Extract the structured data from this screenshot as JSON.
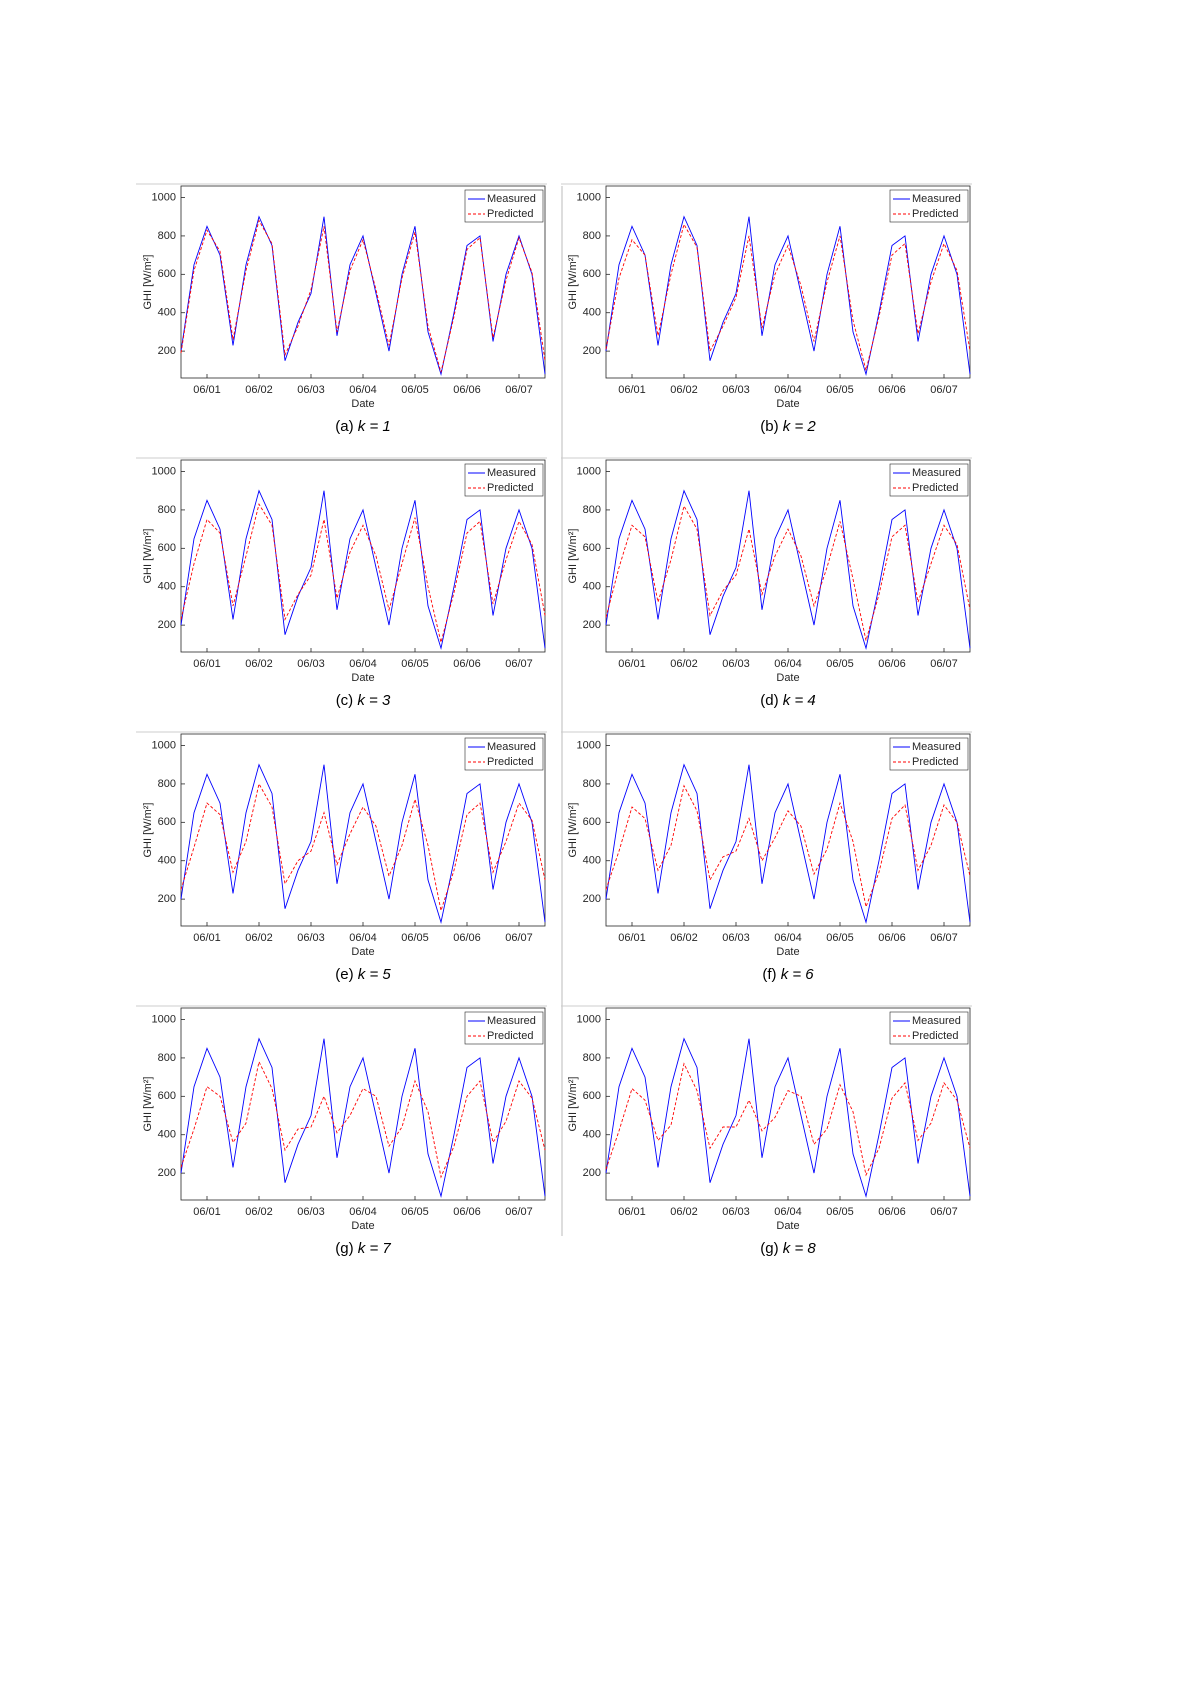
{
  "chart_data": [
    {
      "type": "line",
      "caption": "(a)",
      "k": "k = 1",
      "xlabel": "Date",
      "ylabel": "GHI [W/m²]",
      "ylim": [
        60,
        1060
      ],
      "yticks": [
        200,
        400,
        600,
        800,
        1000
      ],
      "categories": [
        null,
        null,
        "06/01",
        null,
        null,
        null,
        "06/02",
        null,
        null,
        null,
        "06/03",
        null,
        null,
        null,
        "06/04",
        null,
        null,
        null,
        "06/05",
        null,
        null,
        null,
        "06/06",
        null,
        null,
        null,
        "06/07",
        null,
        null
      ],
      "series": [
        {
          "name": "Measured",
          "color": "#0000ff",
          "values": [
            200,
            650,
            850,
            700,
            230,
            650,
            900,
            750,
            150,
            350,
            500,
            900,
            280,
            650,
            800,
            500,
            200,
            600,
            850,
            300,
            80,
            400,
            750,
            800,
            250,
            600,
            800,
            600,
            80
          ]
        },
        {
          "name": "Predicted",
          "color": "#ff0000",
          "values": [
            190,
            620,
            830,
            720,
            260,
            620,
            880,
            760,
            180,
            330,
            520,
            850,
            300,
            620,
            780,
            520,
            230,
            580,
            820,
            330,
            90,
            380,
            730,
            790,
            270,
            570,
            790,
            610,
            150
          ]
        }
      ]
    },
    {
      "type": "line",
      "caption": "(b)",
      "k": "k = 2",
      "xlabel": "Date",
      "ylabel": "GHI [W/m²]",
      "ylim": [
        60,
        1060
      ],
      "yticks": [
        200,
        400,
        600,
        800,
        1000
      ],
      "categories": [
        null,
        null,
        "06/01",
        null,
        null,
        null,
        "06/02",
        null,
        null,
        null,
        "06/03",
        null,
        null,
        null,
        "06/04",
        null,
        null,
        null,
        "06/05",
        null,
        null,
        null,
        "06/06",
        null,
        null,
        null,
        "06/07",
        null,
        null
      ],
      "series": [
        {
          "name": "Measured",
          "color": "#0000ff",
          "values": [
            200,
            650,
            850,
            700,
            230,
            650,
            900,
            750,
            150,
            350,
            500,
            900,
            280,
            650,
            800,
            500,
            200,
            600,
            850,
            300,
            80,
            400,
            750,
            800,
            250,
            600,
            800,
            600,
            80
          ]
        },
        {
          "name": "Predicted",
          "color": "#ff0000",
          "values": [
            210,
            580,
            780,
            700,
            280,
            600,
            860,
            740,
            200,
            330,
            480,
            800,
            320,
            600,
            750,
            540,
            250,
            560,
            800,
            360,
            100,
            380,
            700,
            760,
            290,
            560,
            760,
            620,
            200
          ]
        }
      ]
    },
    {
      "type": "line",
      "caption": "(c)",
      "k": "k = 3",
      "xlabel": "Date",
      "ylabel": "GHI [W/m²]",
      "ylim": [
        60,
        1060
      ],
      "yticks": [
        200,
        400,
        600,
        800,
        1000
      ],
      "categories": [
        null,
        null,
        "06/01",
        null,
        null,
        null,
        "06/02",
        null,
        null,
        null,
        "06/03",
        null,
        null,
        null,
        "06/04",
        null,
        null,
        null,
        "06/05",
        null,
        null,
        null,
        "06/06",
        null,
        null,
        null,
        "06/07",
        null,
        null
      ],
      "series": [
        {
          "name": "Measured",
          "color": "#0000ff",
          "values": [
            200,
            650,
            850,
            700,
            230,
            650,
            900,
            750,
            150,
            350,
            500,
            900,
            280,
            650,
            800,
            500,
            200,
            600,
            850,
            300,
            80,
            400,
            750,
            800,
            250,
            600,
            800,
            600,
            80
          ]
        },
        {
          "name": "Predicted",
          "color": "#ff0000",
          "values": [
            230,
            520,
            750,
            680,
            300,
            560,
            830,
            720,
            230,
            360,
            460,
            750,
            340,
            580,
            720,
            560,
            280,
            520,
            760,
            400,
            110,
            370,
            680,
            740,
            310,
            540,
            740,
            620,
            250
          ]
        }
      ]
    },
    {
      "type": "line",
      "caption": "(d)",
      "k": "k = 4",
      "xlabel": "Date",
      "ylabel": "GHI [W/m²]",
      "ylim": [
        60,
        1060
      ],
      "yticks": [
        200,
        400,
        600,
        800,
        1000
      ],
      "categories": [
        null,
        null,
        "06/01",
        null,
        null,
        null,
        "06/02",
        null,
        null,
        null,
        "06/03",
        null,
        null,
        null,
        "06/04",
        null,
        null,
        null,
        "06/05",
        null,
        null,
        null,
        "06/06",
        null,
        null,
        null,
        "06/07",
        null,
        null
      ],
      "series": [
        {
          "name": "Measured",
          "color": "#0000ff",
          "values": [
            200,
            650,
            850,
            700,
            230,
            650,
            900,
            750,
            150,
            350,
            500,
            900,
            280,
            650,
            800,
            500,
            200,
            600,
            850,
            300,
            80,
            400,
            750,
            800,
            250,
            600,
            800,
            600,
            80
          ]
        },
        {
          "name": "Predicted",
          "color": "#ff0000",
          "values": [
            240,
            500,
            720,
            660,
            320,
            540,
            820,
            700,
            250,
            380,
            460,
            700,
            360,
            560,
            700,
            560,
            300,
            500,
            740,
            440,
            120,
            360,
            660,
            720,
            320,
            520,
            720,
            620,
            280
          ]
        }
      ]
    },
    {
      "type": "line",
      "caption": "(e)",
      "k": "k = 5",
      "xlabel": "Date",
      "ylabel": "GHI [W/m²]",
      "ylim": [
        60,
        1060
      ],
      "yticks": [
        200,
        400,
        600,
        800,
        1000
      ],
      "categories": [
        null,
        null,
        "06/01",
        null,
        null,
        null,
        "06/02",
        null,
        null,
        null,
        "06/03",
        null,
        null,
        null,
        "06/04",
        null,
        null,
        null,
        "06/05",
        null,
        null,
        null,
        "06/06",
        null,
        null,
        null,
        "06/07",
        null,
        null
      ],
      "series": [
        {
          "name": "Measured",
          "color": "#0000ff",
          "values": [
            200,
            650,
            850,
            700,
            230,
            650,
            900,
            750,
            150,
            350,
            500,
            900,
            280,
            650,
            800,
            500,
            200,
            600,
            850,
            300,
            80,
            400,
            750,
            800,
            250,
            600,
            800,
            600,
            80
          ]
        },
        {
          "name": "Predicted",
          "color": "#ff0000",
          "values": [
            250,
            470,
            700,
            640,
            340,
            500,
            800,
            680,
            280,
            400,
            450,
            650,
            380,
            540,
            680,
            580,
            320,
            480,
            720,
            480,
            140,
            350,
            640,
            700,
            340,
            500,
            700,
            610,
            300
          ]
        }
      ]
    },
    {
      "type": "line",
      "caption": "(f)",
      "k": "k = 6",
      "xlabel": "Date",
      "ylabel": "GHI [W/m²]",
      "ylim": [
        60,
        1060
      ],
      "yticks": [
        200,
        400,
        600,
        800,
        1000
      ],
      "categories": [
        null,
        null,
        "06/01",
        null,
        null,
        null,
        "06/02",
        null,
        null,
        null,
        "06/03",
        null,
        null,
        null,
        "06/04",
        null,
        null,
        null,
        "06/05",
        null,
        null,
        null,
        "06/06",
        null,
        null,
        null,
        "06/07",
        null,
        null
      ],
      "series": [
        {
          "name": "Measured",
          "color": "#0000ff",
          "values": [
            200,
            650,
            850,
            700,
            230,
            650,
            900,
            750,
            150,
            350,
            500,
            900,
            280,
            650,
            800,
            500,
            200,
            600,
            850,
            300,
            80,
            400,
            750,
            800,
            250,
            600,
            800,
            600,
            80
          ]
        },
        {
          "name": "Predicted",
          "color": "#ff0000",
          "values": [
            250,
            450,
            680,
            620,
            350,
            480,
            790,
            660,
            300,
            420,
            450,
            620,
            400,
            520,
            660,
            580,
            330,
            460,
            700,
            500,
            160,
            340,
            620,
            690,
            350,
            480,
            690,
            600,
            320
          ]
        }
      ]
    },
    {
      "type": "line",
      "caption": "(g)",
      "k": "k = 7",
      "xlabel": "Date",
      "ylabel": "GHI [W/m²]",
      "ylim": [
        60,
        1060
      ],
      "yticks": [
        200,
        400,
        600,
        800,
        1000
      ],
      "categories": [
        null,
        null,
        "06/01",
        null,
        null,
        null,
        "06/02",
        null,
        null,
        null,
        "06/03",
        null,
        null,
        null,
        "06/04",
        null,
        null,
        null,
        "06/05",
        null,
        null,
        null,
        "06/06",
        null,
        null,
        null,
        "06/07",
        null,
        null
      ],
      "series": [
        {
          "name": "Measured",
          "color": "#0000ff",
          "values": [
            200,
            650,
            850,
            700,
            230,
            650,
            900,
            750,
            150,
            350,
            500,
            900,
            280,
            650,
            800,
            500,
            200,
            600,
            850,
            300,
            80,
            400,
            750,
            800,
            250,
            600,
            800,
            600,
            80
          ]
        },
        {
          "name": "Predicted",
          "color": "#ff0000",
          "values": [
            230,
            430,
            650,
            600,
            360,
            460,
            780,
            640,
            320,
            430,
            440,
            600,
            410,
            500,
            640,
            600,
            340,
            440,
            680,
            520,
            180,
            340,
            600,
            680,
            360,
            470,
            680,
            590,
            320
          ]
        }
      ]
    },
    {
      "type": "line",
      "caption": "(g)",
      "k": "k = 8",
      "xlabel": "Date",
      "ylabel": "GHI [W/m²]",
      "ylim": [
        60,
        1060
      ],
      "yticks": [
        200,
        400,
        600,
        800,
        1000
      ],
      "categories": [
        null,
        null,
        "06/01",
        null,
        null,
        null,
        "06/02",
        null,
        null,
        null,
        "06/03",
        null,
        null,
        null,
        "06/04",
        null,
        null,
        null,
        "06/05",
        null,
        null,
        null,
        "06/06",
        null,
        null,
        null,
        "06/07",
        null,
        null
      ],
      "series": [
        {
          "name": "Measured",
          "color": "#0000ff",
          "values": [
            200,
            650,
            850,
            700,
            230,
            650,
            900,
            750,
            150,
            350,
            500,
            900,
            280,
            650,
            800,
            500,
            200,
            600,
            850,
            300,
            80,
            400,
            750,
            800,
            250,
            600,
            800,
            600,
            80
          ]
        },
        {
          "name": "Predicted",
          "color": "#ff0000",
          "values": [
            220,
            420,
            640,
            580,
            370,
            450,
            770,
            630,
            330,
            440,
            440,
            580,
            420,
            490,
            630,
            600,
            350,
            430,
            660,
            520,
            190,
            330,
            590,
            670,
            370,
            460,
            670,
            580,
            330
          ]
        }
      ]
    }
  ]
}
